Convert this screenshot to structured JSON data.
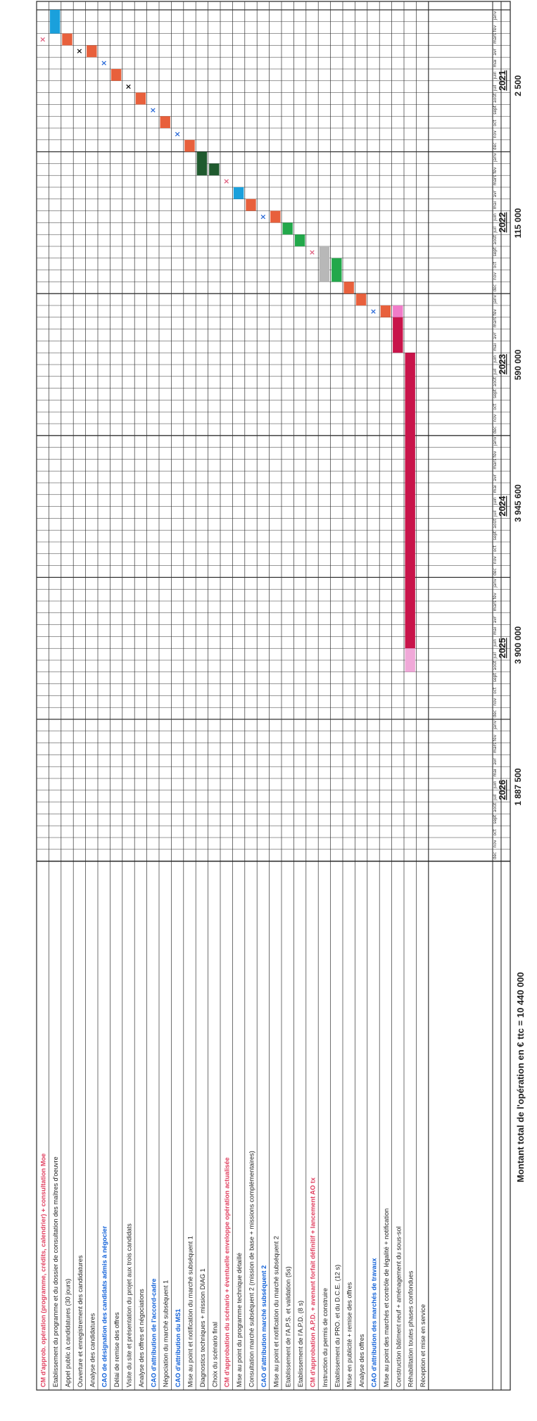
{
  "title": "Montant total de l'opération en € ttc = 10 440 000",
  "years": [
    "2021",
    "2022",
    "2023",
    "2024",
    "2025",
    "2026"
  ],
  "months": [
    "janv",
    "fév",
    "mars",
    "avr",
    "mai",
    "juin",
    "juil",
    "août",
    "sept",
    "oct",
    "nov",
    "déc"
  ],
  "amounts": [
    "2 500",
    "115 000",
    "590 000",
    "3 945 600",
    "3 900 000",
    "1 887 500"
  ],
  "colors": {
    "blue": "#1aa0dc",
    "orange": "#e8603c",
    "dark_green": "#1f5a2e",
    "green": "#22a84a",
    "grey": "#b8b8b8",
    "crimson": "#c8144a",
    "pink": "#f07cc8",
    "pink_light": "#f0a8d8",
    "label_red": "#e04060",
    "label_blue": "#1060d8",
    "marker_blue": "#2a6ad8",
    "marker_pink": "#e06080"
  },
  "tasks": [
    {
      "label": "CM d'approb. opération (programme, crédits, calendrier) + consultation Moe",
      "style": "red",
      "marker": {
        "col": 2,
        "color": "pink"
      }
    },
    {
      "label": "Etablissement du programme et du dossier de consultation des maîtres d'oeuvre",
      "style": "normal",
      "bar": {
        "start": 0,
        "len": 2,
        "color": "blue"
      }
    },
    {
      "label": "Appel public à candidatures (30 jours)",
      "style": "normal",
      "bar": {
        "start": 2,
        "len": 1,
        "color": "orange"
      }
    },
    {
      "label": "Ouverture et enregistrement des candidatures",
      "style": "normal",
      "marker": {
        "col": 3,
        "color": "black"
      }
    },
    {
      "label": "Analyse des candidatures",
      "style": "normal",
      "bar": {
        "start": 3,
        "len": 1,
        "color": "orange"
      }
    },
    {
      "label": "CAO de désignation des candidats admis à négocier",
      "style": "blue",
      "marker": {
        "col": 4,
        "color": "blue"
      }
    },
    {
      "label": "Délai de remise des offres",
      "style": "normal",
      "bar": {
        "start": 5,
        "len": 1,
        "color": "orange"
      }
    },
    {
      "label": "Visite du site et présentation du projet aux trois candidats",
      "style": "normal",
      "marker": {
        "col": 6,
        "color": "black"
      }
    },
    {
      "label": "Analyse des offres et négociations",
      "style": "normal",
      "bar": {
        "start": 7,
        "len": 1,
        "color": "orange"
      }
    },
    {
      "label": "CAO d'attribution de l'accord-cadre",
      "style": "blue",
      "marker": {
        "col": 8,
        "color": "blue"
      }
    },
    {
      "label": "Négociation du marché subséquent 1",
      "style": "normal",
      "bar": {
        "start": 9,
        "len": 1,
        "color": "orange"
      }
    },
    {
      "label": "CAO d'attribution du MS1",
      "style": "blue",
      "marker": {
        "col": 10,
        "color": "blue"
      }
    },
    {
      "label": "Mise au point et notification du marché subséquent 1",
      "style": "normal",
      "bar": {
        "start": 11,
        "len": 1,
        "color": "orange"
      }
    },
    {
      "label": "Diagnostics techniques + mission DIAG 1",
      "style": "normal",
      "bar": {
        "start": 12,
        "len": 2,
        "color": "dark_green"
      }
    },
    {
      "label": "Choix du scénario final",
      "style": "normal",
      "bar": {
        "start": 13,
        "len": 1,
        "color": "dark_green"
      }
    },
    {
      "label": "CM d'approbation du scénario + éventuelle enveloppe opération actualisée",
      "style": "red",
      "marker": {
        "col": 14,
        "color": "pink"
      }
    },
    {
      "label": "Mise au point du programme technique détaillé",
      "style": "normal",
      "bar": {
        "start": 15,
        "len": 1,
        "color": "blue"
      }
    },
    {
      "label": "Consultation marché subséquent 2 (mission de base + missions complémentaires)",
      "style": "normal",
      "bar": {
        "start": 16,
        "len": 1,
        "color": "orange"
      }
    },
    {
      "label": "CAO d'attribution marché subséquent 2",
      "style": "blue",
      "marker": {
        "col": 17,
        "color": "blue"
      }
    },
    {
      "label": "Mise au point et notification du marché subséquent 2",
      "style": "normal",
      "bar": {
        "start": 17,
        "len": 1,
        "color": "orange"
      }
    },
    {
      "label": "Etablissement de l'A.P.S. et validation (5s)",
      "style": "normal",
      "bar": {
        "start": 18,
        "len": 1,
        "color": "green"
      }
    },
    {
      "label": "Etablissement de l'A.P.D. (8 s)",
      "style": "normal",
      "bar": {
        "start": 19,
        "len": 1,
        "color": "green"
      }
    },
    {
      "label": "CM d'approbation A.P.D. + avenant forfait définitif + lancement AO tx",
      "style": "red",
      "marker": {
        "col": 20,
        "color": "pink"
      }
    },
    {
      "label": "Instruction du permis de construire",
      "style": "normal",
      "bar": {
        "start": 20,
        "len": 3,
        "color": "grey"
      }
    },
    {
      "label": "Etablissement du PRO. et du D.C.E. (12 s)",
      "style": "normal",
      "bar": {
        "start": 21,
        "len": 2,
        "color": "green"
      }
    },
    {
      "label": "Mise en publicité + remise des offres",
      "style": "normal",
      "bar": {
        "start": 23,
        "len": 1,
        "color": "orange"
      }
    },
    {
      "label": "Analyse des offres",
      "style": "normal",
      "bar": {
        "start": 24,
        "len": 1,
        "color": "orange"
      }
    },
    {
      "label": "CAO d'attribution des marchés de travaux",
      "style": "blue",
      "marker": {
        "col": 25,
        "color": "blue"
      }
    },
    {
      "label": "Mise au point des marchés et contrôle de légalité + notification",
      "style": "normal",
      "bar": {
        "start": 25,
        "len": 1,
        "color": "orange"
      }
    },
    {
      "label": "Construction bâtiment neuf + aménagement du sous-sol",
      "style": "normal",
      "bar": {
        "start": 26,
        "len": 3,
        "color": "crimson",
        "pre": {
          "len": 1,
          "color": "pink"
        }
      }
    },
    {
      "label": "Réhabilitation toutes phases confondues",
      "style": "normal",
      "bar": {
        "start": 29,
        "len": 25,
        "color": "crimson",
        "post": {
          "len": 2,
          "color": "pink_light"
        }
      }
    },
    {
      "label": "Réception et mise en service",
      "style": "normal"
    }
  ]
}
